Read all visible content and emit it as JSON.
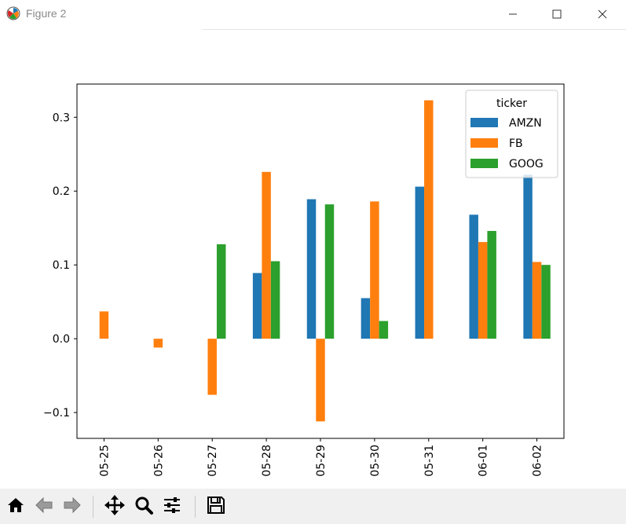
{
  "window": {
    "title": "Figure 2"
  },
  "toolbar": {
    "buttons": [
      {
        "name": "home-button",
        "icon": "home-icon"
      },
      {
        "name": "back-button",
        "icon": "arrow-left-icon"
      },
      {
        "name": "forward-button",
        "icon": "arrow-right-icon"
      },
      {
        "name": "pan-button",
        "icon": "move-icon"
      },
      {
        "name": "zoom-button",
        "icon": "magnifier-icon"
      },
      {
        "name": "configure-subplots-button",
        "icon": "sliders-icon"
      },
      {
        "name": "save-button",
        "icon": "floppy-disk-icon"
      }
    ]
  },
  "chart_data": {
    "type": "bar",
    "categories": [
      "05-25",
      "05-26",
      "05-27",
      "05-28",
      "05-29",
      "05-30",
      "05-31",
      "06-01",
      "06-02"
    ],
    "series": [
      {
        "name": "AMZN",
        "color": "#1f77b4",
        "values": [
          null,
          null,
          null,
          0.089,
          0.189,
          0.055,
          0.206,
          0.168,
          0.222
        ]
      },
      {
        "name": "FB",
        "color": "#ff7f0e",
        "values": [
          0.037,
          -0.012,
          -0.076,
          0.226,
          -0.112,
          0.186,
          0.323,
          0.131,
          0.104
        ]
      },
      {
        "name": "GOOG",
        "color": "#2ca02c",
        "values": [
          null,
          null,
          0.128,
          0.105,
          0.182,
          0.024,
          null,
          0.146,
          0.1
        ]
      }
    ],
    "title": "",
    "xlabel": "",
    "ylabel": "",
    "ylim": [
      -0.135,
      0.345
    ],
    "yticks": [
      -0.1,
      0.0,
      0.1,
      0.2,
      0.3
    ],
    "ytick_labels": [
      "−0.1",
      "0.0",
      "0.1",
      "0.2",
      "0.3"
    ],
    "legend": {
      "title": "ticker",
      "position": "top-right"
    },
    "grid": false
  }
}
